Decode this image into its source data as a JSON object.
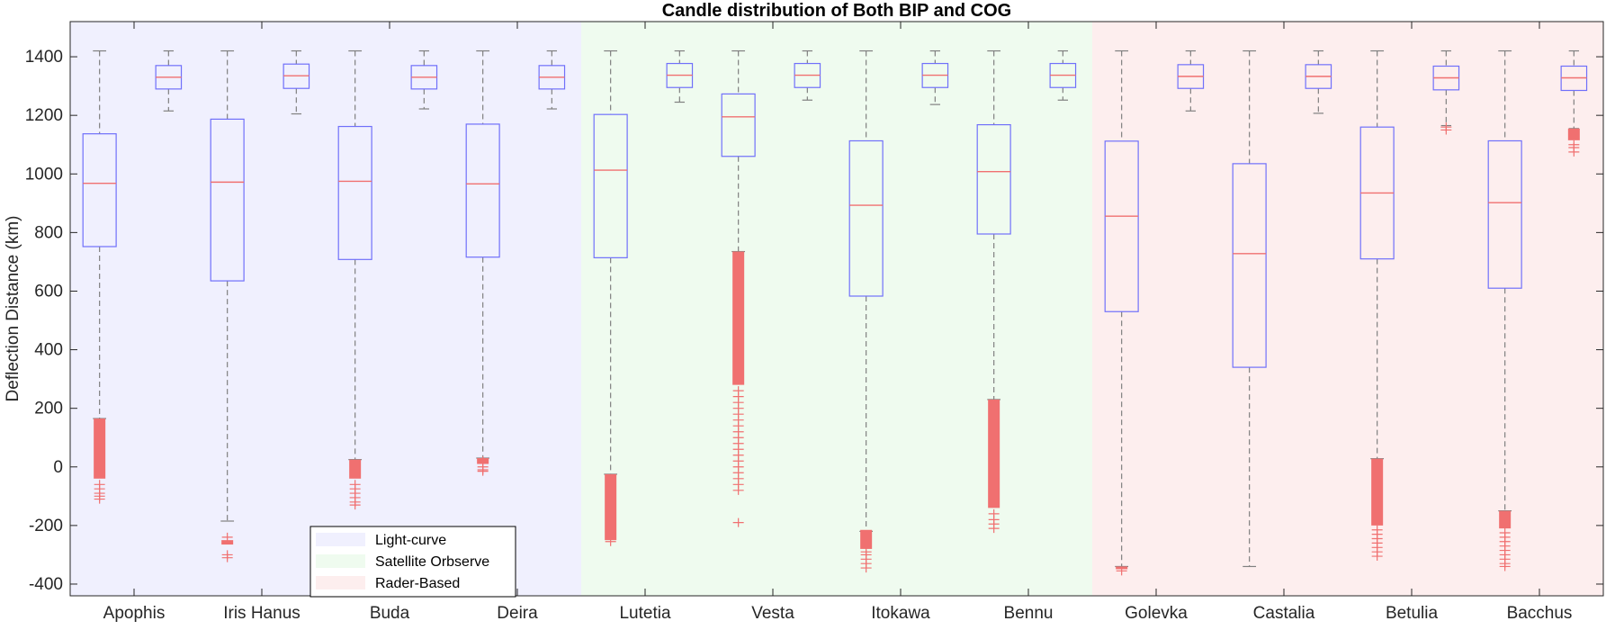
{
  "chart_data": {
    "type": "box",
    "title": "Candle distribution of Both BIP and COG",
    "xlabel": "",
    "ylabel": "Deflection Distance (km)",
    "ylim": [
      -440,
      1520
    ],
    "yticks": [
      1400,
      1200,
      1000,
      800,
      600,
      400,
      200,
      0,
      -200,
      -400
    ],
    "categories": [
      "Apophis",
      "Iris Hanus",
      "Buda",
      "Deira",
      "Lutetia",
      "Vesta",
      "Itokawa",
      "Bennu",
      "Golevka",
      "Castalia",
      "Betulia",
      "Bacchus"
    ],
    "groups": [
      {
        "label": "Light-curve",
        "color": "#f0f0fe",
        "from": 0,
        "to": 3
      },
      {
        "label": "Satellite Orbserve",
        "color": "#effbef",
        "from": 4,
        "to": 7
      },
      {
        "label": "Rader-Based",
        "color": "#fdeeee",
        "from": 8,
        "to": 11
      }
    ],
    "series": [
      {
        "name": "BIP",
        "boxes": [
          {
            "min": 165,
            "q1": 752,
            "median": 968,
            "q3": 1137,
            "max": 1420,
            "outliers_dense": [
              -40,
              165
            ],
            "outliers": [
              -60,
              -75,
              -90,
              -100,
              -110,
              -20,
              0,
              10
            ]
          },
          {
            "min": -185,
            "q1": 635,
            "median": 972,
            "q3": 1187,
            "max": 1420,
            "outliers_dense": [
              -265,
              -250
            ],
            "outliers": [
              -240,
              -310,
              -300
            ]
          },
          {
            "min": 25,
            "q1": 708,
            "median": 975,
            "q3": 1162,
            "max": 1420,
            "outliers_dense": [
              -40,
              25
            ],
            "outliers": [
              -60,
              -75,
              -90,
              -105,
              -120,
              -130
            ]
          },
          {
            "min": 30,
            "q1": 716,
            "median": 966,
            "q3": 1170,
            "max": 1420,
            "outliers_dense": [
              10,
              30
            ],
            "outliers": [
              0,
              -10,
              -15,
              20
            ]
          },
          {
            "min": -25,
            "q1": 714,
            "median": 1013,
            "q3": 1203,
            "max": 1420,
            "outliers_dense": [
              -250,
              -25
            ],
            "outliers": [
              -255
            ]
          },
          {
            "min": 735,
            "q1": 1060,
            "median": 1195,
            "q3": 1273,
            "max": 1420,
            "outliers_dense": [
              280,
              735
            ],
            "outliers": [
              260,
              240,
              220,
              200,
              180,
              160,
              140,
              120,
              100,
              80,
              60,
              40,
              20,
              0,
              -20,
              -40,
              -60,
              -80,
              -190
            ]
          },
          {
            "min": -220,
            "q1": 583,
            "median": 893,
            "q3": 1113,
            "max": 1420,
            "outliers_dense": [
              -280,
              -215
            ],
            "outliers": [
              -290,
              -300,
              -315,
              -330,
              -345
            ]
          },
          {
            "min": 230,
            "q1": 795,
            "median": 1008,
            "q3": 1168,
            "max": 1420,
            "outliers_dense": [
              -140,
              230
            ],
            "outliers": [
              -160,
              -180,
              -195,
              -210
            ]
          },
          {
            "min": -340,
            "q1": 530,
            "median": 856,
            "q3": 1112,
            "max": 1420,
            "outliers_dense": [
              -345,
              -340
            ],
            "outliers": [
              -355
            ]
          },
          {
            "min": -340,
            "q1": 340,
            "median": 728,
            "q3": 1035,
            "max": 1420,
            "outliers_dense": [],
            "outliers": []
          },
          {
            "min": 28,
            "q1": 710,
            "median": 935,
            "q3": 1160,
            "max": 1420,
            "outliers_dense": [
              -200,
              28
            ],
            "outliers": [
              -215,
              -230,
              -245,
              -260,
              -275,
              -290,
              -305
            ]
          },
          {
            "min": -150,
            "q1": 610,
            "median": 902,
            "q3": 1113,
            "max": 1420,
            "outliers_dense": [
              -210,
              -150
            ],
            "outliers": [
              -225,
              -240,
              -255,
              -270,
              -285,
              -300,
              -315,
              -330,
              -340
            ]
          }
        ]
      },
      {
        "name": "COG",
        "boxes": [
          {
            "min": 1215,
            "q1": 1290,
            "median": 1330,
            "q3": 1370,
            "max": 1420,
            "outliers_dense": [],
            "outliers": []
          },
          {
            "min": 1205,
            "q1": 1292,
            "median": 1335,
            "q3": 1375,
            "max": 1420,
            "outliers_dense": [],
            "outliers": []
          },
          {
            "min": 1222,
            "q1": 1290,
            "median": 1330,
            "q3": 1370,
            "max": 1420,
            "outliers_dense": [],
            "outliers": []
          },
          {
            "min": 1222,
            "q1": 1290,
            "median": 1330,
            "q3": 1370,
            "max": 1420,
            "outliers_dense": [],
            "outliers": []
          },
          {
            "min": 1245,
            "q1": 1295,
            "median": 1337,
            "q3": 1377,
            "max": 1420,
            "outliers_dense": [],
            "outliers": []
          },
          {
            "min": 1252,
            "q1": 1295,
            "median": 1337,
            "q3": 1377,
            "max": 1420,
            "outliers_dense": [],
            "outliers": []
          },
          {
            "min": 1237,
            "q1": 1295,
            "median": 1337,
            "q3": 1377,
            "max": 1420,
            "outliers_dense": [],
            "outliers": []
          },
          {
            "min": 1252,
            "q1": 1295,
            "median": 1337,
            "q3": 1377,
            "max": 1420,
            "outliers_dense": [],
            "outliers": []
          },
          {
            "min": 1215,
            "q1": 1292,
            "median": 1333,
            "q3": 1373,
            "max": 1420,
            "outliers_dense": [],
            "outliers": []
          },
          {
            "min": 1207,
            "q1": 1292,
            "median": 1333,
            "q3": 1373,
            "max": 1420,
            "outliers_dense": [],
            "outliers": []
          },
          {
            "min": 1165,
            "q1": 1287,
            "median": 1328,
            "q3": 1368,
            "max": 1420,
            "outliers_dense": [],
            "outliers": [
              1160,
              1150
            ]
          },
          {
            "min": 1155,
            "q1": 1285,
            "median": 1328,
            "q3": 1368,
            "max": 1420,
            "outliers_dense": [
              1115,
              1155
            ],
            "outliers": [
              1100,
              1090,
              1075
            ]
          }
        ]
      }
    ],
    "legend": {
      "position": "bottom-left",
      "entries": [
        "Light-curve",
        "Satellite Orbserve",
        "Rader-Based"
      ]
    },
    "colors": {
      "box": "#7070fa",
      "median": "#f07070",
      "whisker": "#808080",
      "outlier": "#f07070",
      "axis": "#262626"
    }
  }
}
